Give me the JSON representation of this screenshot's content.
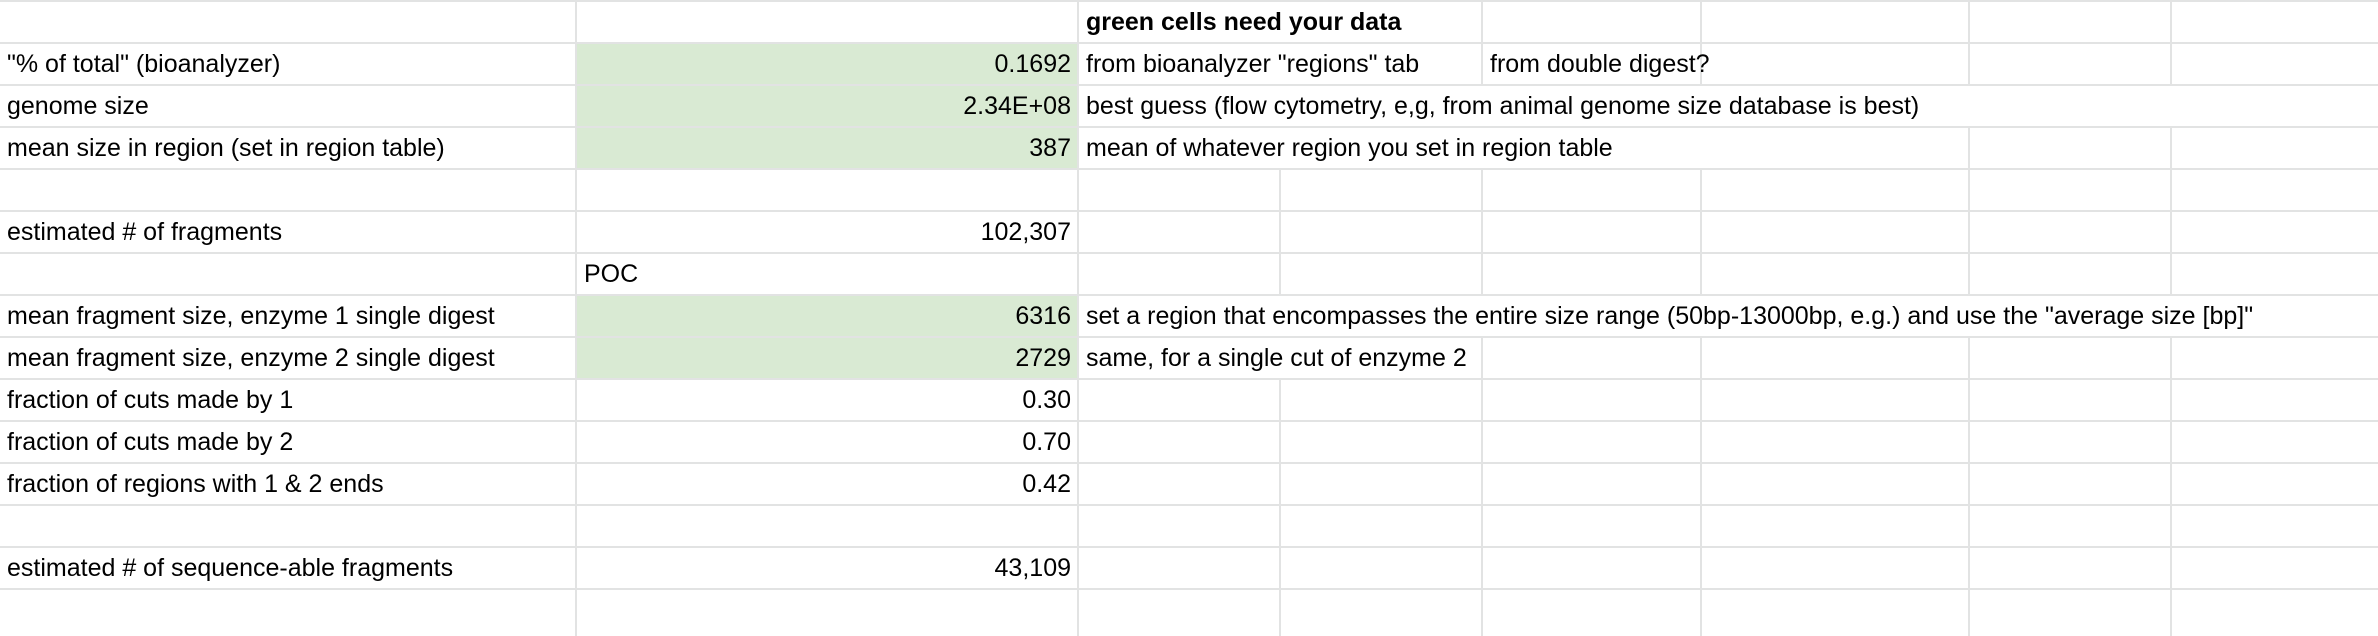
{
  "colors": {
    "input_fill": "#d9ead3",
    "gridline": "#e2e3e3"
  },
  "rows": [
    {
      "a": "",
      "b": "",
      "c": "green cells need your data",
      "d": ""
    },
    {
      "a": "\"% of total\" (bioanalyzer)",
      "b": "0.1692",
      "c": "from bioanalyzer \"regions\" tab",
      "d": "from double digest?"
    },
    {
      "a": "genome size",
      "b": "2.34E+08",
      "c": "best guess (flow cytometry, e,g, from animal genome size database is best)",
      "d": ""
    },
    {
      "a": "mean size in region (set in region table)",
      "b": "387",
      "c": "mean of whatever region you set in region table",
      "d": ""
    },
    {
      "a": "",
      "b": "",
      "c": "",
      "d": ""
    },
    {
      "a": "estimated # of fragments",
      "b": "102,307",
      "c": "",
      "d": ""
    },
    {
      "a": "",
      "b": "POC",
      "c": "",
      "d": ""
    },
    {
      "a": "mean fragment size, enzyme 1 single digest",
      "b": "6316",
      "c": "set a region that encompasses the entire size range (50bp-13000bp, e.g.) and use the \"average size [bp]\"",
      "d": ""
    },
    {
      "a": "mean fragment size, enzyme 2 single digest",
      "b": "2729",
      "c": "same, for a single cut of enzyme 2",
      "d": ""
    },
    {
      "a": "fraction of cuts made by 1",
      "b": "0.30",
      "c": "",
      "d": ""
    },
    {
      "a": "fraction of cuts made by 2",
      "b": "0.70",
      "c": "",
      "d": ""
    },
    {
      "a": "fraction of regions with 1 & 2 ends",
      "b": "0.42",
      "c": "",
      "d": ""
    },
    {
      "a": "",
      "b": "",
      "c": "",
      "d": ""
    },
    {
      "a": "estimated # of sequence-able fragments",
      "b": "43,109",
      "c": "",
      "d": ""
    },
    {
      "a": "",
      "b": "",
      "c": "",
      "d": ""
    }
  ]
}
